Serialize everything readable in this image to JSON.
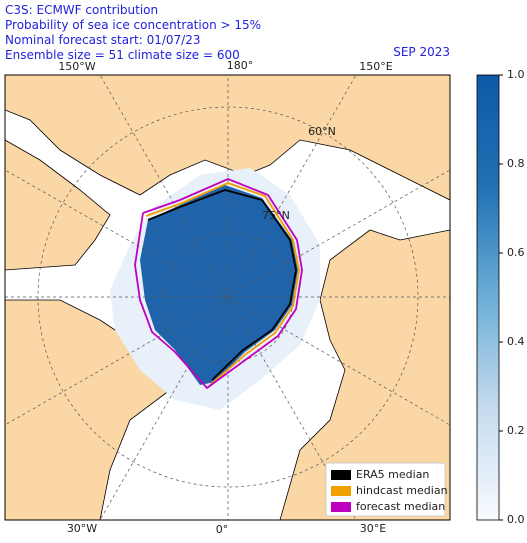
{
  "header": {
    "lines": [
      "C3S: ECMWF contribution",
      "Probability of sea ice concentration > 15%",
      "Nominal forecast start: 01/07/23",
      "Ensemble size = 51 climate size = 600"
    ],
    "period": "SEP 2023"
  },
  "map": {
    "lon_labels_top": [
      "150°W",
      "180°",
      "150°E"
    ],
    "lon_labels_bottom": [
      "30°W",
      "0°",
      "30°E"
    ],
    "lat_labels": [
      "60°N",
      "75°N"
    ]
  },
  "colorbar": {
    "range": [
      0,
      1
    ],
    "colors": [
      "#f7fbff",
      "#c6dbef",
      "#6baed6",
      "#2171b5",
      "#0d5aa6"
    ],
    "ticks": [
      {
        "value": 0,
        "label": "0.0"
      },
      0.2,
      0.4,
      0.6,
      0.8,
      {
        "value": 1,
        "label": "1.0"
      }
    ]
  },
  "legend": [
    {
      "name": "ERA5 median",
      "color": "#000000"
    },
    {
      "name": "hindcast median",
      "color": "#f0a000"
    },
    {
      "name": "forecast median",
      "color": "#c000c0"
    }
  ]
}
